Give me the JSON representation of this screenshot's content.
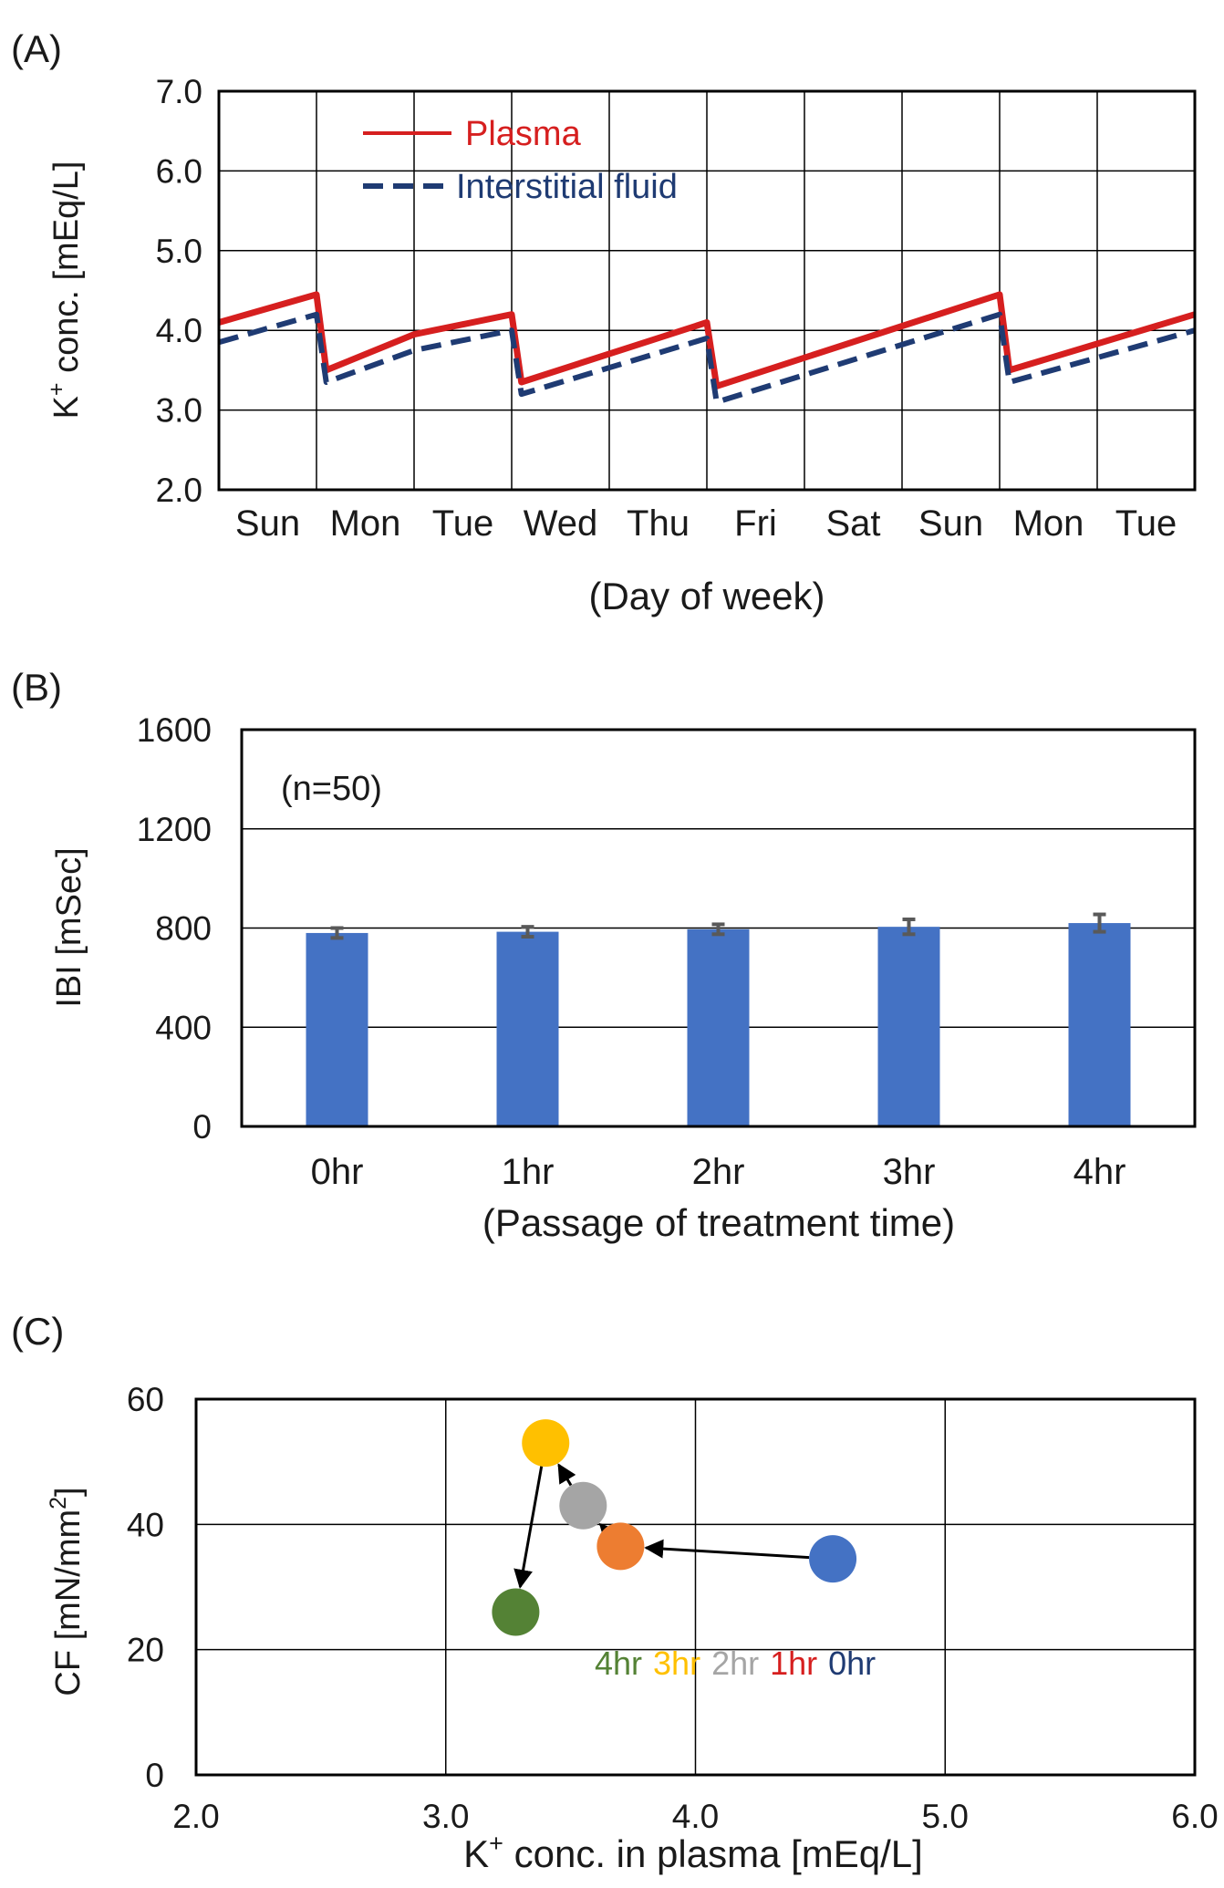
{
  "chart_data": [
    {
      "panel_label": "(A)",
      "type": "line",
      "xlabel": "(Day of week)",
      "ylabel_main": "K",
      "ylabel_sup": "+",
      "ylabel_rest": " conc. [mEq/L]",
      "ylim": [
        2.0,
        7.0
      ],
      "yticks": [
        "2.0",
        "3.0",
        "4.0",
        "5.0",
        "6.0",
        "7.0"
      ],
      "x_categories": [
        "Sun",
        "Mon",
        "Tue",
        "Wed",
        "Thu",
        "Fri",
        "Sat",
        "Sun",
        "Mon",
        "Tue"
      ],
      "grid": true,
      "legend_position": "top-left",
      "series": [
        {
          "name": "Plasma",
          "color": "#d61f1f",
          "style": "solid",
          "points": [
            [
              0,
              4.1
            ],
            [
              1,
              4.45
            ],
            [
              1.1,
              3.5
            ],
            [
              2,
              3.95
            ],
            [
              3,
              4.2
            ],
            [
              3.1,
              3.35
            ],
            [
              5,
              4.1
            ],
            [
              5.1,
              3.3
            ],
            [
              8,
              4.45
            ],
            [
              8.1,
              3.5
            ],
            [
              10,
              4.2
            ]
          ]
        },
        {
          "name": "Interstitial fluid",
          "color": "#1f3b73",
          "style": "dashed",
          "points": [
            [
              0,
              3.85
            ],
            [
              1,
              4.2
            ],
            [
              1.1,
              3.35
            ],
            [
              2,
              3.75
            ],
            [
              3,
              4.0
            ],
            [
              3.1,
              3.2
            ],
            [
              5,
              3.9
            ],
            [
              5.1,
              3.1
            ],
            [
              8,
              4.2
            ],
            [
              8.1,
              3.35
            ],
            [
              10,
              4.0
            ]
          ]
        }
      ]
    },
    {
      "panel_label": "(B)",
      "type": "bar",
      "annotation": "(n=50)",
      "xlabel": "(Passage of treatment time)",
      "ylabel": "IBI [mSec]",
      "ylim": [
        0,
        1600
      ],
      "yticks": [
        "0",
        "400",
        "800",
        "1200",
        "1600"
      ],
      "categories": [
        "0hr",
        "1hr",
        "2hr",
        "3hr",
        "4hr"
      ],
      "values": [
        780,
        785,
        795,
        805,
        820
      ],
      "errors": [
        20,
        20,
        20,
        30,
        35
      ],
      "bar_color": "#4472c4",
      "error_color": "#595959",
      "grid": true
    },
    {
      "panel_label": "(C)",
      "type": "scatter",
      "xlabel_main": "K",
      "xlabel_sup": "+",
      "xlabel_rest": " conc. in plasma [mEq/L]",
      "ylabel_main": "CF [mN/mm",
      "ylabel_sup": "2",
      "ylabel_rest": "]",
      "xlim": [
        2.0,
        6.0
      ],
      "ylim": [
        0,
        60
      ],
      "xticks": [
        "2.0",
        "3.0",
        "4.0",
        "5.0",
        "6.0"
      ],
      "yticks": [
        "0",
        "20",
        "40",
        "60"
      ],
      "grid": true,
      "points": [
        {
          "label": "0hr",
          "x": 4.55,
          "y": 34.5,
          "color": "#4472c4",
          "label_color": "#1f3b73"
        },
        {
          "label": "1hr",
          "x": 3.7,
          "y": 36.5,
          "color": "#ed7d31",
          "label_color": "#d61f1f"
        },
        {
          "label": "2hr",
          "x": 3.55,
          "y": 43,
          "color": "#a5a5a5",
          "label_color": "#a5a5a5"
        },
        {
          "label": "3hr",
          "x": 3.4,
          "y": 53,
          "color": "#ffc000",
          "label_color": "#ffc000"
        },
        {
          "label": "4hr",
          "x": 3.28,
          "y": 26,
          "color": "#548235",
          "label_color": "#548235"
        }
      ],
      "arrow_order": [
        "0hr",
        "1hr",
        "2hr",
        "3hr",
        "4hr"
      ],
      "label_order": [
        "4hr",
        "3hr",
        "2hr",
        "1hr",
        "0hr"
      ]
    }
  ]
}
